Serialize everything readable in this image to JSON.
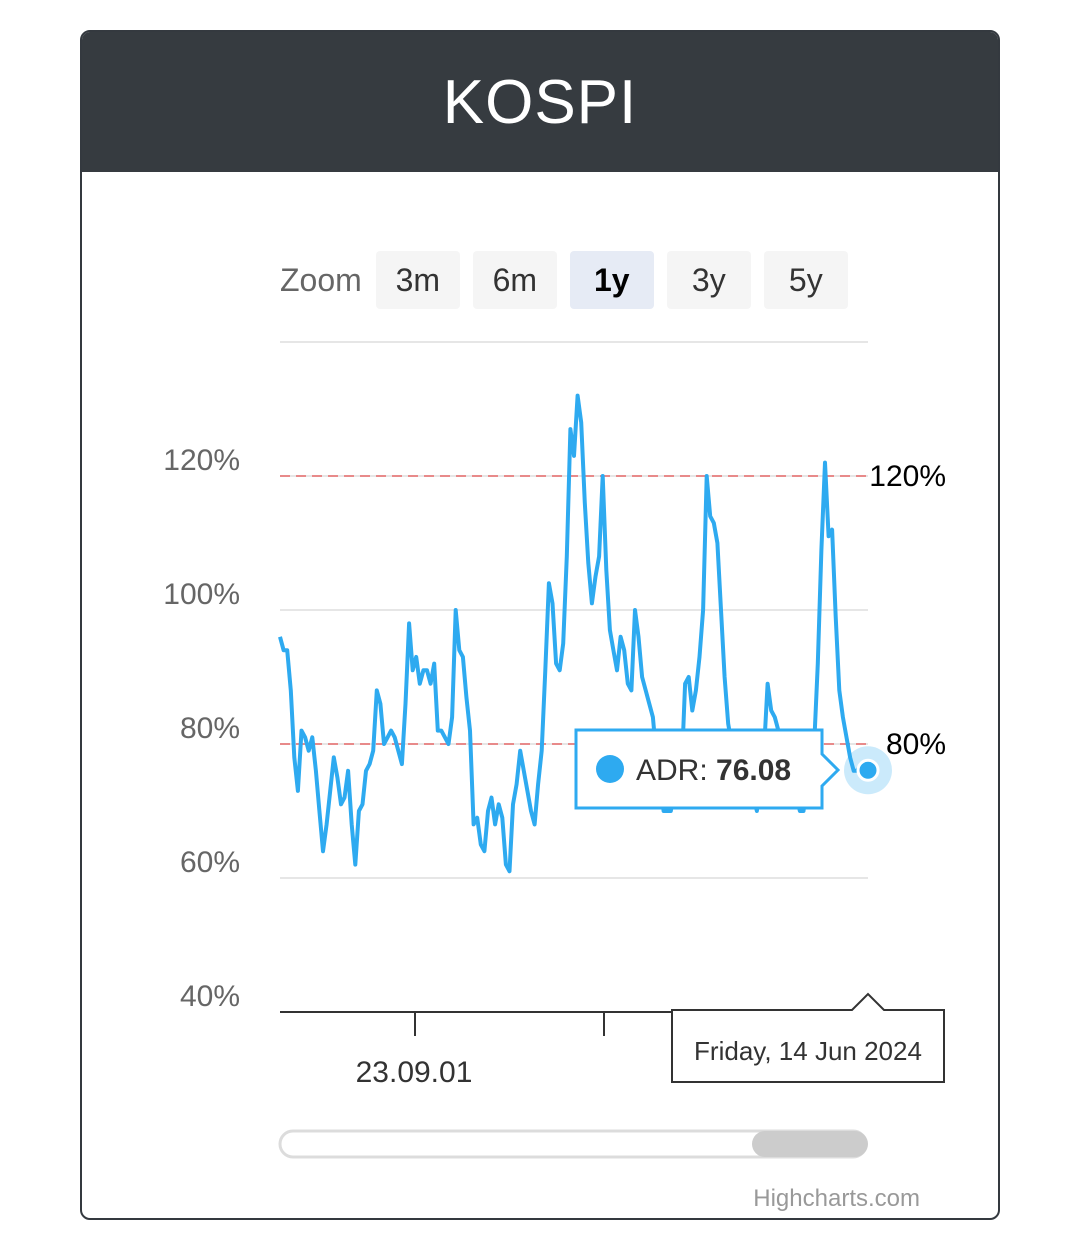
{
  "header": {
    "title": "KOSPI"
  },
  "zoom": {
    "label": "Zoom",
    "buttons": [
      {
        "label": "3m",
        "active": false
      },
      {
        "label": "6m",
        "active": false
      },
      {
        "label": "1y",
        "active": true
      },
      {
        "label": "3y",
        "active": false
      },
      {
        "label": "5y",
        "active": false
      }
    ]
  },
  "colors": {
    "series": "#2eaaf0",
    "reference_line": "#e88a8a",
    "header_bg": "#363b40"
  },
  "chart_data": {
    "type": "line",
    "title": "",
    "yTickLabels": [
      "40%",
      "60%",
      "80%",
      "100%",
      "120%"
    ],
    "yTicks": [
      40,
      60,
      80,
      100,
      120
    ],
    "ylim": [
      40,
      140
    ],
    "referenceLines": [
      {
        "value": 80,
        "label": "80%"
      },
      {
        "value": 120,
        "label": "120%"
      }
    ],
    "xAxisLabels": [
      {
        "label": "23.09.01"
      }
    ],
    "series": [
      {
        "name": "ADR",
        "values": [
          96,
          94,
          94,
          88,
          78,
          73,
          82,
          81,
          79,
          81,
          76,
          70,
          64,
          68,
          73,
          78,
          75,
          71,
          72,
          76,
          68,
          62,
          70,
          71,
          76,
          77,
          79,
          88,
          86,
          80,
          81,
          82,
          81,
          79,
          77,
          86,
          98,
          91,
          93,
          89,
          91,
          91,
          89,
          92,
          82,
          82,
          81,
          80,
          84,
          100,
          94,
          93,
          87,
          82,
          68,
          69,
          65,
          64,
          70,
          72,
          68,
          71,
          69,
          62,
          61,
          71,
          74,
          79,
          76,
          73,
          70,
          68,
          74,
          79,
          91,
          104,
          101,
          92,
          91,
          95,
          108,
          127,
          123,
          132,
          128,
          116,
          107,
          101,
          105,
          108,
          120,
          106,
          97,
          94,
          91,
          96,
          94,
          89,
          88,
          100,
          96,
          90,
          88,
          86,
          84,
          78,
          74,
          70,
          70,
          70,
          73,
          75,
          76,
          89,
          90,
          85,
          88,
          93,
          100,
          120,
          114,
          113,
          110,
          100,
          90,
          83,
          80,
          76,
          75,
          72,
          71,
          71,
          72,
          70,
          76,
          79,
          89,
          85,
          84,
          82,
          79,
          76,
          74,
          74,
          72,
          70,
          70,
          74,
          71,
          80,
          92,
          109,
          122,
          111,
          112,
          99,
          88,
          84,
          81,
          78,
          76,
          76,
          77,
          77,
          76.08
        ],
        "last": {
          "label": "ADR",
          "value": "76.08",
          "date": "Friday, 14 Jun 2024"
        }
      }
    ]
  },
  "credit": "Highcharts.com"
}
